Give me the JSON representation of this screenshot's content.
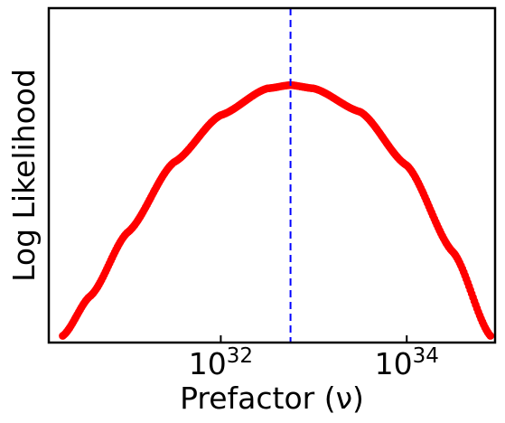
{
  "chart_data": {
    "type": "scatter",
    "xlabel": "Prefactor (ν)",
    "ylabel": "Log Likelihood",
    "x_scale": "log10",
    "xlim_log10": [
      30.15,
      34.95
    ],
    "ylim": [
      0,
      1
    ],
    "y_tick_labels_shown": false,
    "grid": false,
    "legend": "none",
    "x_ticks": [
      {
        "base": "10",
        "exponent": "32",
        "log10": 32
      },
      {
        "base": "10",
        "exponent": "34",
        "log10": 34
      }
    ],
    "series": [
      {
        "marker_color": "#ff0000",
        "x_log10_range": [
          30.3,
          34.9
        ],
        "x_log10_peak": 32.75,
        "y_normalized_points": [
          {
            "x_log10": 30.3,
            "y": 0.02
          },
          {
            "x_log10": 30.6,
            "y": 0.14
          },
          {
            "x_log10": 31.0,
            "y": 0.33
          },
          {
            "x_log10": 31.5,
            "y": 0.54
          },
          {
            "x_log10": 32.0,
            "y": 0.68
          },
          {
            "x_log10": 32.5,
            "y": 0.76
          },
          {
            "x_log10": 32.75,
            "y": 0.77
          },
          {
            "x_log10": 33.0,
            "y": 0.76
          },
          {
            "x_log10": 33.5,
            "y": 0.69
          },
          {
            "x_log10": 34.0,
            "y": 0.53
          },
          {
            "x_log10": 34.5,
            "y": 0.27
          },
          {
            "x_log10": 34.9,
            "y": 0.02
          }
        ]
      }
    ],
    "reference_line": {
      "x_log10": 32.75,
      "color": "#0000ff",
      "style": "dashed"
    }
  }
}
